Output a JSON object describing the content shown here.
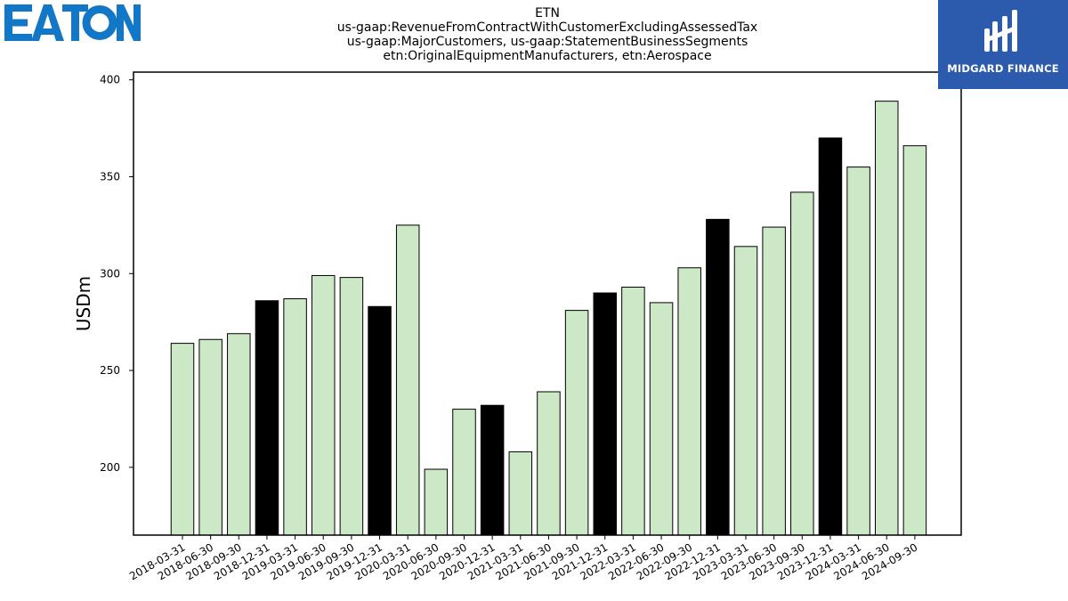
{
  "logos": {
    "company": {
      "text": "EATON",
      "color": "#1177c6"
    },
    "publisher": {
      "text": "MIDGARD FINANCE",
      "background": "#2c5aac"
    }
  },
  "chart_data": {
    "type": "bar",
    "title_lines": [
      "ETN",
      "us-gaap:RevenueFromContractWithCustomerExcludingAssessedTax",
      "us-gaap:MajorCustomers, us-gaap:StatementBusinessSegments",
      "etn:OriginalEquipmentManufacturers, etn:Aerospace"
    ],
    "ylabel": "USDm",
    "xlabel": "",
    "ylim": [
      165,
      404
    ],
    "yticks": [
      200,
      250,
      300,
      350,
      400
    ],
    "grid": false,
    "legend": "none",
    "colors": {
      "regular": "#cce8c6",
      "year_end": "#000000",
      "edge": "#000000"
    },
    "categories": [
      "2018-03-31",
      "2018-06-30",
      "2018-09-30",
      "2018-12-31",
      "2019-03-31",
      "2019-06-30",
      "2019-09-30",
      "2019-12-31",
      "2020-03-31",
      "2020-06-30",
      "2020-09-30",
      "2020-12-31",
      "2021-03-31",
      "2021-06-30",
      "2021-09-30",
      "2021-12-31",
      "2022-03-31",
      "2022-06-30",
      "2022-09-30",
      "2022-12-31",
      "2023-03-31",
      "2023-06-30",
      "2023-09-30",
      "2023-12-31",
      "2024-03-31",
      "2024-06-30",
      "2024-09-30"
    ],
    "values": [
      264,
      266,
      269,
      286,
      287,
      299,
      298,
      283,
      325,
      199,
      230,
      232,
      208,
      239,
      281,
      290,
      293,
      285,
      303,
      328,
      314,
      324,
      342,
      370,
      355,
      389,
      366
    ]
  }
}
